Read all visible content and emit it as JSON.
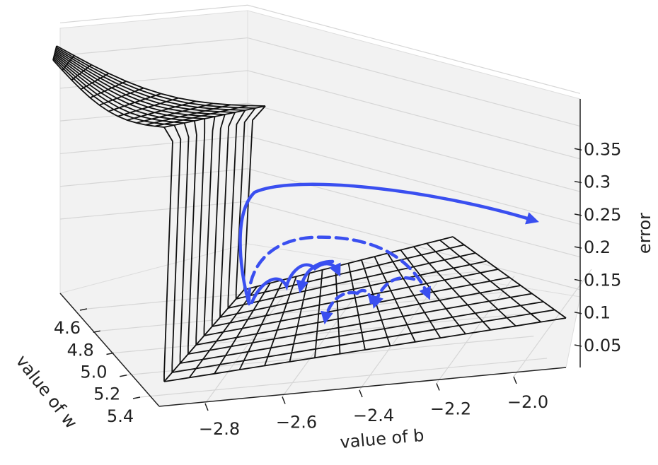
{
  "chart_data": {
    "type": "surface3d",
    "xlabel": "value of b",
    "ylabel": "value of w",
    "zlabel": "error",
    "xlim": [
      -2.9,
      -1.95
    ],
    "xticks": [
      {
        "value": -2.8,
        "label": "−2.8"
      },
      {
        "value": -2.6,
        "label": "−2.6"
      },
      {
        "value": -2.4,
        "label": "−2.4"
      },
      {
        "value": -2.2,
        "label": "−2.2"
      },
      {
        "value": -2.0,
        "label": "−2.0"
      }
    ],
    "ylim": [
      4.5,
      5.45
    ],
    "yticks": [
      4.6,
      4.8,
      {
        "value": 5,
        "label": "5.0"
      },
      5.2,
      5.4
    ],
    "zlim": [
      0.0,
      0.4
    ],
    "zticks": [
      0.05,
      0.1,
      0.15,
      0.2,
      0.25,
      0.3,
      0.35
    ],
    "grid": true
  }
}
